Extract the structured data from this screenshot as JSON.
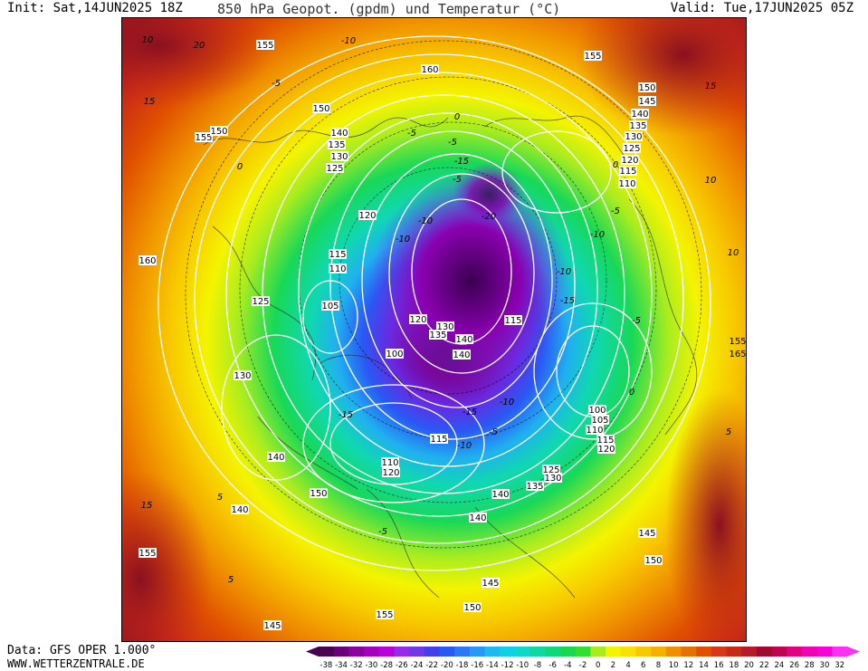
{
  "header": {
    "init": "Init: Sat,14JUN2025 18Z",
    "title": "850 hPa Geopot. (gpdm) und Temperatur (°C)",
    "valid": "Valid: Tue,17JUN2025 05Z"
  },
  "footer": {
    "source": "Data: GFS OPER 1.000°",
    "url": "WWW.WETTERZENTRALE.DE"
  },
  "colorbar": {
    "ticks": [
      "-38",
      "-34",
      "-32",
      "-30",
      "-28",
      "-26",
      "-24",
      "-22",
      "-20",
      "-18",
      "-16",
      "-14",
      "-12",
      "-10",
      "-8",
      "-6",
      "-4",
      "-2",
      "0",
      "2",
      "4",
      "6",
      "8",
      "10",
      "12",
      "14",
      "16",
      "18",
      "20",
      "22",
      "24",
      "26",
      "28",
      "30",
      "32"
    ],
    "colors": [
      "#4a0050",
      "#6a0078",
      "#8a00a0",
      "#a400c0",
      "#b800d8",
      "#9a28e8",
      "#7038e8",
      "#4040f0",
      "#2a58f4",
      "#2a78f8",
      "#2898f8",
      "#20b8f0",
      "#10d0e8",
      "#10d8c8",
      "#10d8a0",
      "#10d878",
      "#18d850",
      "#30e030",
      "#a8ec20",
      "#f4f400",
      "#f8e000",
      "#f8c800",
      "#f8b000",
      "#f09000",
      "#e87000",
      "#e05000",
      "#d83818",
      "#c82818",
      "#b81828",
      "#a00830",
      "#c00050",
      "#e00080",
      "#f000b0",
      "#f800d8",
      "#ff30f0"
    ]
  },
  "geopotential_labels": [
    {
      "text": "155"
    },
    {
      "text": "160"
    },
    {
      "text": "155"
    },
    {
      "text": "150"
    },
    {
      "text": "145"
    },
    {
      "text": "140"
    },
    {
      "text": "135"
    },
    {
      "text": "130"
    },
    {
      "text": "125"
    },
    {
      "text": "120"
    },
    {
      "text": "115"
    },
    {
      "text": "110"
    },
    {
      "text": "150"
    },
    {
      "text": "155"
    },
    {
      "text": "150"
    },
    {
      "text": "140"
    },
    {
      "text": "135"
    },
    {
      "text": "130"
    },
    {
      "text": "125"
    },
    {
      "text": "120"
    },
    {
      "text": "115"
    },
    {
      "text": "110"
    },
    {
      "text": "105"
    },
    {
      "text": "125"
    },
    {
      "text": "130"
    },
    {
      "text": "160"
    },
    {
      "text": "100"
    },
    {
      "text": "120"
    },
    {
      "text": "130"
    },
    {
      "text": "135"
    },
    {
      "text": "140"
    },
    {
      "text": "140"
    },
    {
      "text": "115"
    },
    {
      "text": "100"
    },
    {
      "text": "105"
    },
    {
      "text": "110"
    },
    {
      "text": "115"
    },
    {
      "text": "120"
    },
    {
      "text": "115"
    },
    {
      "text": "110"
    },
    {
      "text": "120"
    },
    {
      "text": "125"
    },
    {
      "text": "130"
    },
    {
      "text": "135"
    },
    {
      "text": "140"
    },
    {
      "text": "140"
    },
    {
      "text": "150"
    },
    {
      "text": "140"
    },
    {
      "text": "140"
    },
    {
      "text": "145"
    },
    {
      "text": "150"
    },
    {
      "text": "145"
    },
    {
      "text": "150"
    },
    {
      "text": "155"
    },
    {
      "text": "155"
    },
    {
      "text": "145"
    },
    {
      "text": "160"
    },
    {
      "text": "155"
    },
    {
      "text": "155"
    },
    {
      "text": "165"
    }
  ],
  "temperature_labels": [
    {
      "text": "-10"
    },
    {
      "text": "-5"
    },
    {
      "text": "-5"
    },
    {
      "text": "-15"
    },
    {
      "text": "-20"
    },
    {
      "text": "-10"
    },
    {
      "text": "-10"
    },
    {
      "text": "-5"
    },
    {
      "text": "-10"
    },
    {
      "text": "-15"
    },
    {
      "text": "-10"
    },
    {
      "text": "-5"
    },
    {
      "text": "-15"
    },
    {
      "text": "-10"
    },
    {
      "text": "-5"
    },
    {
      "text": "-5"
    },
    {
      "text": "-5"
    },
    {
      "text": "0"
    },
    {
      "text": "0"
    },
    {
      "text": "0"
    },
    {
      "text": "0"
    },
    {
      "text": "5"
    },
    {
      "text": "5"
    },
    {
      "text": "5"
    },
    {
      "text": "10"
    },
    {
      "text": "10"
    },
    {
      "text": "10"
    },
    {
      "text": "15"
    },
    {
      "text": "15"
    },
    {
      "text": "20"
    },
    {
      "text": "15"
    },
    {
      "text": "-5"
    },
    {
      "text": "-10"
    },
    {
      "text": "-15"
    }
  ]
}
